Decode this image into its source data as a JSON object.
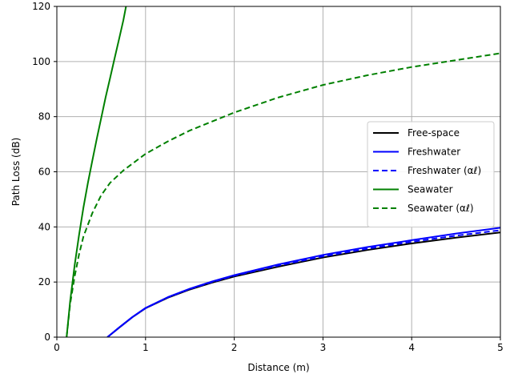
{
  "chart_data": {
    "type": "line",
    "title": "",
    "xlabel": "Distance (m)",
    "ylabel": "Path Loss (dB)",
    "xlim": [
      0,
      5
    ],
    "ylim": [
      0,
      120
    ],
    "xticks": [
      "0",
      "1",
      "2",
      "3",
      "4",
      "5"
    ],
    "yticks": [
      "0",
      "20",
      "40",
      "60",
      "80",
      "100",
      "120"
    ],
    "grid": true,
    "legend_position": "center-right",
    "series": [
      {
        "name": "Free-space",
        "color": "#000000",
        "dash": "solid",
        "x": [
          0.57,
          0.7,
          0.85,
          1.0,
          1.25,
          1.5,
          1.75,
          2.0,
          2.5,
          3.0,
          3.5,
          4.0,
          4.5,
          5.0
        ],
        "y": [
          0.0,
          3.4,
          7.2,
          10.5,
          14.3,
          17.3,
          19.8,
          22.0,
          25.6,
          28.9,
          31.6,
          34.0,
          36.1,
          38.0
        ]
      },
      {
        "name": "Freshwater",
        "color": "#0000ff",
        "dash": "solid",
        "x": [
          0.57,
          0.7,
          0.85,
          1.0,
          1.25,
          1.5,
          1.75,
          2.0,
          2.5,
          3.0,
          3.5,
          4.0,
          4.5,
          5.0
        ],
        "y": [
          0.0,
          3.5,
          7.3,
          10.6,
          14.5,
          17.6,
          20.2,
          22.5,
          26.4,
          29.8,
          32.7,
          35.2,
          37.6,
          39.7
        ]
      },
      {
        "name": "Freshwater (αℓ)",
        "color": "#0000ff",
        "dash": "dashed",
        "x": [
          0.57,
          0.7,
          0.85,
          1.0,
          1.25,
          1.5,
          1.75,
          2.0,
          2.5,
          3.0,
          3.5,
          4.0,
          4.5,
          5.0
        ],
        "y": [
          0.0,
          3.4,
          7.2,
          10.5,
          14.4,
          17.5,
          20.0,
          22.3,
          26.0,
          29.3,
          32.1,
          34.6,
          36.8,
          38.8
        ]
      },
      {
        "name": "Seawater",
        "color": "#008000",
        "dash": "solid",
        "x": [
          0.11,
          0.15,
          0.2,
          0.25,
          0.3,
          0.35,
          0.4,
          0.45,
          0.5,
          0.55,
          0.6,
          0.65,
          0.7,
          0.75,
          0.78
        ],
        "y": [
          0.0,
          13.0,
          26.0,
          37.0,
          47.0,
          56.0,
          64.0,
          72.0,
          79.5,
          87.0,
          94.0,
          101.0,
          108.0,
          115.0,
          120.0
        ]
      },
      {
        "name": "Seawater (αℓ)",
        "color": "#008000",
        "dash": "dashed",
        "x": [
          0.11,
          0.15,
          0.2,
          0.25,
          0.3,
          0.4,
          0.5,
          0.6,
          0.75,
          1.0,
          1.25,
          1.5,
          2.0,
          2.5,
          3.0,
          3.5,
          4.0,
          4.5,
          5.0
        ],
        "y": [
          0.0,
          12.0,
          22.0,
          30.0,
          36.5,
          45.0,
          51.5,
          56.0,
          60.5,
          66.5,
          71.0,
          75.0,
          81.5,
          87.0,
          91.5,
          95.0,
          98.0,
          100.5,
          103.0
        ]
      }
    ]
  }
}
